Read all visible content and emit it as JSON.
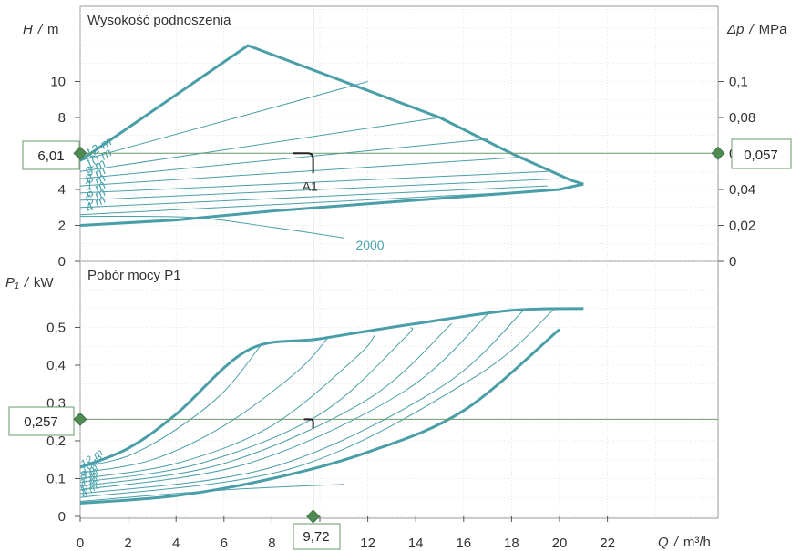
{
  "colors": {
    "curve": "#4a9ea8",
    "grid": "#d6d6d6",
    "marker": "#4e8a52",
    "crosshair": "#6a9a6a",
    "frame": "#9a9a9a"
  },
  "chart_data": [
    {
      "type": "line",
      "title": "Wysokość podnoszenia",
      "ylabel": "H",
      "ylabel_unit": "m",
      "y2label": "Δp",
      "y2label_unit": "MPa",
      "xlim": [
        0,
        26
      ],
      "ylim": [
        0,
        14
      ],
      "x_ticks": [
        0,
        2,
        4,
        6,
        8,
        10,
        12,
        14,
        16,
        18,
        20,
        22
      ],
      "y_ticks": [
        0,
        2,
        4,
        6,
        8,
        10
      ],
      "y2_ticks": [
        "0",
        "0,02",
        "0,04",
        "0,06",
        "0,08",
        "0,1"
      ],
      "y2_tick_values": [
        0,
        2,
        4,
        6,
        8,
        10
      ],
      "max_curve": [
        [
          0,
          5.6
        ],
        [
          7,
          12
        ],
        [
          11,
          10
        ],
        [
          15,
          8
        ],
        [
          18,
          6
        ],
        [
          20.5,
          4.5
        ],
        [
          21,
          4.3
        ]
      ],
      "min_curve": [
        [
          0,
          2.0
        ],
        [
          4,
          2.3
        ],
        [
          8,
          2.8
        ],
        [
          12,
          3.2
        ],
        [
          16,
          3.6
        ],
        [
          20,
          4.0
        ],
        [
          21,
          4.3
        ]
      ],
      "speed_curves": [
        {
          "name": "12 m",
          "points": [
            [
              0,
              5.6
            ],
            [
              12,
              10.0
            ]
          ]
        },
        {
          "name": "10 m",
          "points": [
            [
              0,
              5.0
            ],
            [
              15,
              8.0
            ]
          ]
        },
        {
          "name": "9 m",
          "points": [
            [
              0,
              4.6
            ],
            [
              17,
              6.8
            ]
          ]
        },
        {
          "name": "8 m",
          "points": [
            [
              0,
              4.2
            ],
            [
              18.5,
              5.8
            ]
          ]
        },
        {
          "name": "7 m",
          "points": [
            [
              0,
              3.8
            ],
            [
              19.5,
              5.0
            ]
          ]
        },
        {
          "name": "6 m",
          "points": [
            [
              0,
              3.4
            ],
            [
              20,
              4.6
            ]
          ]
        },
        {
          "name": "5 m",
          "points": [
            [
              0,
              3.0
            ],
            [
              19.5,
              4.2
            ]
          ]
        },
        {
          "name": "4 m",
          "points": [
            [
              0,
              2.6
            ],
            [
              19,
              3.9
            ]
          ]
        }
      ],
      "min_speed_curve": {
        "name": "2000",
        "points": [
          [
            0,
            2.5
          ],
          [
            4.6,
            2.45
          ],
          [
            8,
            1.9
          ],
          [
            11,
            1.3
          ]
        ]
      },
      "curve_labels": [
        "12 m",
        "10 m",
        "9 m",
        "8 m",
        "7 m",
        "6 m",
        "5 m",
        "4 m"
      ],
      "operating_point": {
        "label": "A1",
        "x": 9.72,
        "y": 6.01
      },
      "readouts": {
        "left": "6,01",
        "right": "0,057"
      }
    },
    {
      "type": "line",
      "title": "Pobór mocy P1",
      "ylabel": "P₁",
      "ylabel_unit": "kW",
      "xlabel": "Q",
      "xlabel_unit": "m³/h",
      "xlim": [
        0,
        26
      ],
      "ylim": [
        0,
        0.62
      ],
      "x_ticks": [
        0,
        2,
        4,
        6,
        8,
        10,
        12,
        14,
        16,
        18,
        20,
        22
      ],
      "x_tick_labels": [
        "0",
        "2",
        "4",
        "6",
        "8",
        "10",
        "12",
        "14",
        "16",
        "18",
        "20",
        "22"
      ],
      "y_ticks": [
        0,
        0.1,
        0.2,
        0.3,
        0.4,
        0.5
      ],
      "y_tick_labels": [
        "0",
        "0,1",
        "0,2",
        "0,3",
        "0,4",
        "0,5"
      ],
      "max_curve": [
        [
          0,
          0.13
        ],
        [
          2,
          0.18
        ],
        [
          4,
          0.27
        ],
        [
          7,
          0.44
        ],
        [
          10,
          0.47
        ],
        [
          14,
          0.51
        ],
        [
          18,
          0.545
        ],
        [
          21,
          0.55
        ]
      ],
      "min_curve": [
        [
          0,
          0.035
        ],
        [
          4,
          0.055
        ],
        [
          8,
          0.1
        ],
        [
          12,
          0.17
        ],
        [
          16,
          0.28
        ],
        [
          20,
          0.495
        ]
      ],
      "speed_curves": [
        {
          "name": "12 m",
          "points": [
            [
              0,
              0.13
            ],
            [
              2,
              0.16
            ],
            [
              4,
              0.23
            ],
            [
              6,
              0.33
            ],
            [
              7.5,
              0.45
            ]
          ]
        },
        {
          "name": "10 m",
          "points": [
            [
              0,
              0.115
            ],
            [
              3,
              0.15
            ],
            [
              6,
              0.24
            ],
            [
              9,
              0.38
            ],
            [
              10.3,
              0.47
            ]
          ]
        },
        {
          "name": "9 m",
          "points": [
            [
              0,
              0.1
            ],
            [
              4,
              0.14
            ],
            [
              8,
              0.24
            ],
            [
              11.5,
              0.42
            ],
            [
              12.3,
              0.48
            ]
          ]
        },
        {
          "name": "8 m",
          "points": [
            [
              0,
              0.09
            ],
            [
              5,
              0.14
            ],
            [
              10,
              0.27
            ],
            [
              13.5,
              0.47
            ],
            [
              13.8,
              0.5
            ]
          ]
        },
        {
          "name": "7 m",
          "points": [
            [
              0,
              0.08
            ],
            [
              6,
              0.14
            ],
            [
              12,
              0.31
            ],
            [
              15.5,
              0.51
            ]
          ]
        },
        {
          "name": "6 m",
          "points": [
            [
              0,
              0.07
            ],
            [
              7,
              0.14
            ],
            [
              13.5,
              0.33
            ],
            [
              17,
              0.535
            ]
          ]
        },
        {
          "name": "5 m",
          "points": [
            [
              0,
              0.06
            ],
            [
              8,
              0.13
            ],
            [
              15,
              0.34
            ],
            [
              18.5,
              0.545
            ]
          ]
        },
        {
          "name": "4 m",
          "points": [
            [
              0,
              0.05
            ],
            [
              9,
              0.13
            ],
            [
              16.5,
              0.37
            ],
            [
              19.8,
              0.55
            ]
          ]
        }
      ],
      "min_speed_curve": {
        "name": "2000",
        "points": [
          [
            0,
            0.04
          ],
          [
            6,
            0.07
          ],
          [
            11,
            0.085
          ]
        ]
      },
      "curve_labels": [
        "12 m",
        "10 m",
        "9 m",
        "8 m",
        "7 m",
        "6 m",
        "5 m",
        "4 m"
      ],
      "readouts": {
        "left": "0,257",
        "bottom": "9,72"
      },
      "operating_point": {
        "x": 9.72,
        "y": 0.257
      }
    }
  ]
}
